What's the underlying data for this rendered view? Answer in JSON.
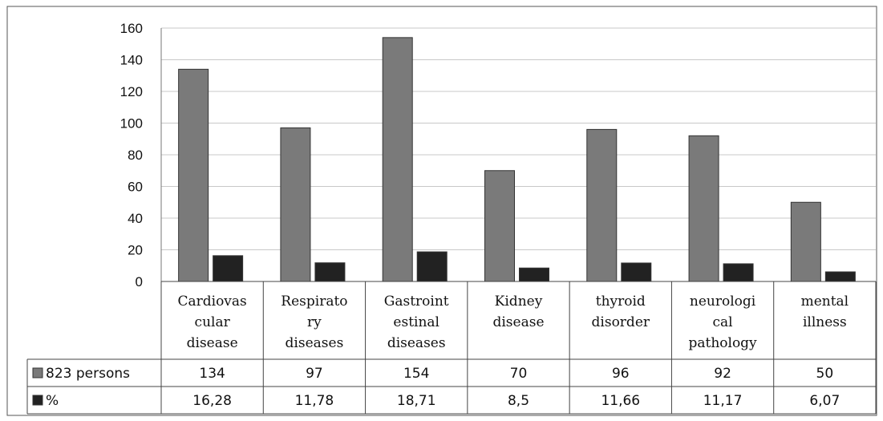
{
  "chart_data": {
    "type": "bar",
    "categories": [
      [
        "Cardiovas",
        "cular",
        "disease"
      ],
      [
        "Respirato",
        "ry",
        "diseases"
      ],
      [
        "Gastroint",
        "estinal",
        "diseases"
      ],
      [
        "Kidney",
        "disease"
      ],
      [
        "thyroid",
        "disorder"
      ],
      [
        "neurologi",
        "cal",
        "pathology"
      ],
      [
        "mental",
        "illness"
      ]
    ],
    "series": [
      {
        "name": "823 persons",
        "color": "#7a7a7a",
        "values": [
          134,
          97,
          154,
          70,
          96,
          92,
          50
        ],
        "labels": [
          "134",
          "97",
          "154",
          "70",
          "96",
          "92",
          "50"
        ]
      },
      {
        "name": "%",
        "color": "#222222",
        "values": [
          16.28,
          11.78,
          18.71,
          8.5,
          11.66,
          11.17,
          6.07
        ],
        "labels": [
          "16,28",
          "11,78",
          "18,71",
          "8,5",
          "11,66",
          "11,17",
          "6,07"
        ]
      }
    ],
    "ylim": [
      0,
      160
    ],
    "yticks": [
      "0",
      "20",
      "40",
      "60",
      "80",
      "100",
      "120",
      "140",
      "160"
    ],
    "grid": true,
    "legend": "data-table-left",
    "data_table": true
  }
}
